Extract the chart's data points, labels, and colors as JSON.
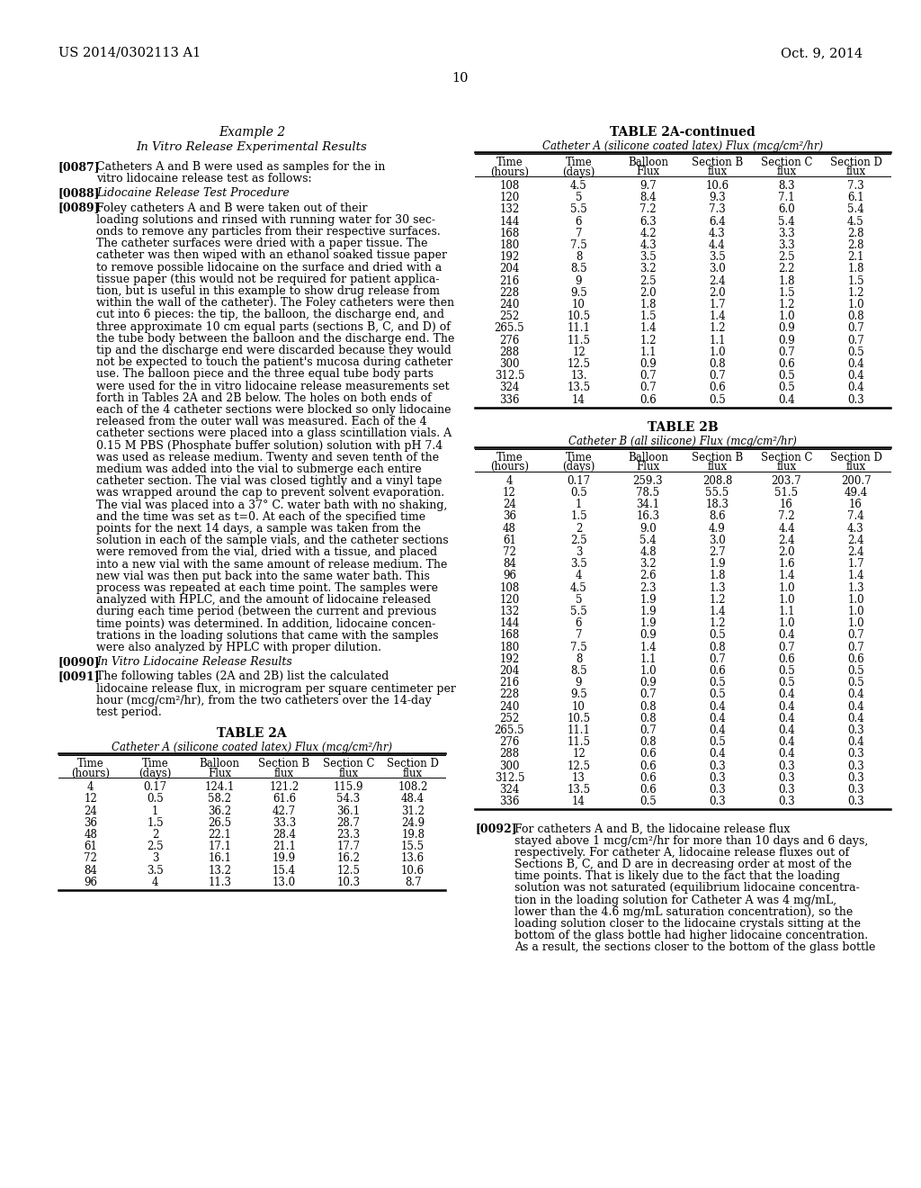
{
  "header_left": "US 2014/0302113 A1",
  "header_right": "Oct. 9, 2014",
  "page_number": "10",
  "section_title": "Example 2",
  "section_subtitle": "In Vitro Release Experimental Results",
  "table2a_title": "TABLE 2A",
  "table2a_subtitle": "Catheter A (silicone coated latex) Flux (mcg/cm²/hr)",
  "table2a_headers": [
    "Time\n(hours)",
    "Time\n(days)",
    "Balloon\nFlux",
    "Section B\nflux",
    "Section C\nflux",
    "Section D\nflux"
  ],
  "table2a_data": [
    [
      "4",
      "0.17",
      "124.1",
      "121.2",
      "115.9",
      "108.2"
    ],
    [
      "12",
      "0.5",
      "58.2",
      "61.6",
      "54.3",
      "48.4"
    ],
    [
      "24",
      "1",
      "36.2",
      "42.7",
      "36.1",
      "31.2"
    ],
    [
      "36",
      "1.5",
      "26.5",
      "33.3",
      "28.7",
      "24.9"
    ],
    [
      "48",
      "2",
      "22.1",
      "28.4",
      "23.3",
      "19.8"
    ],
    [
      "61",
      "2.5",
      "17.1",
      "21.1",
      "17.7",
      "15.5"
    ],
    [
      "72",
      "3",
      "16.1",
      "19.9",
      "16.2",
      "13.6"
    ],
    [
      "84",
      "3.5",
      "13.2",
      "15.4",
      "12.5",
      "10.6"
    ],
    [
      "96",
      "4",
      "11.3",
      "13.0",
      "10.3",
      "8.7"
    ]
  ],
  "table2a_cont_title": "TABLE 2A-continued",
  "table2a_cont_subtitle": "Catheter A (silicone coated latex) Flux (mcg/cm²/hr)",
  "table2a_cont_headers": [
    "Time\n(hours)",
    "Time\n(days)",
    "Balloon\nFlux",
    "Section B\nflux",
    "Section C\nflux",
    "Section D\nflux"
  ],
  "table2a_cont_data": [
    [
      "108",
      "4.5",
      "9.7",
      "10.6",
      "8.3",
      "7.3"
    ],
    [
      "120",
      "5",
      "8.4",
      "9.3",
      "7.1",
      "6.1"
    ],
    [
      "132",
      "5.5",
      "7.2",
      "7.3",
      "6.0",
      "5.4"
    ],
    [
      "144",
      "6",
      "6.3",
      "6.4",
      "5.4",
      "4.5"
    ],
    [
      "168",
      "7",
      "4.2",
      "4.3",
      "3.3",
      "2.8"
    ],
    [
      "180",
      "7.5",
      "4.3",
      "4.4",
      "3.3",
      "2.8"
    ],
    [
      "192",
      "8",
      "3.5",
      "3.5",
      "2.5",
      "2.1"
    ],
    [
      "204",
      "8.5",
      "3.2",
      "3.0",
      "2.2",
      "1.8"
    ],
    [
      "216",
      "9",
      "2.5",
      "2.4",
      "1.8",
      "1.5"
    ],
    [
      "228",
      "9.5",
      "2.0",
      "2.0",
      "1.5",
      "1.2"
    ],
    [
      "240",
      "10",
      "1.8",
      "1.7",
      "1.2",
      "1.0"
    ],
    [
      "252",
      "10.5",
      "1.5",
      "1.4",
      "1.0",
      "0.8"
    ],
    [
      "265.5",
      "11.1",
      "1.4",
      "1.2",
      "0.9",
      "0.7"
    ],
    [
      "276",
      "11.5",
      "1.2",
      "1.1",
      "0.9",
      "0.7"
    ],
    [
      "288",
      "12",
      "1.1",
      "1.0",
      "0.7",
      "0.5"
    ],
    [
      "300",
      "12.5",
      "0.9",
      "0.8",
      "0.6",
      "0.4"
    ],
    [
      "312.5",
      "13.",
      "0.7",
      "0.7",
      "0.5",
      "0.4"
    ],
    [
      "324",
      "13.5",
      "0.7",
      "0.6",
      "0.5",
      "0.4"
    ],
    [
      "336",
      "14",
      "0.6",
      "0.5",
      "0.4",
      "0.3"
    ]
  ],
  "table2b_title": "TABLE 2B",
  "table2b_subtitle": "Catheter B (all silicone) Flux (mcg/cm²/hr)",
  "table2b_headers": [
    "Time\n(hours)",
    "Time\n(days)",
    "Balloon\nFlux",
    "Section B\nflux",
    "Section C\nflux",
    "Section D\nflux"
  ],
  "table2b_data": [
    [
      "4",
      "0.17",
      "259.3",
      "208.8",
      "203.7",
      "200.7"
    ],
    [
      "12",
      "0.5",
      "78.5",
      "55.5",
      "51.5",
      "49.4"
    ],
    [
      "24",
      "1",
      "34.1",
      "18.3",
      "16",
      "16"
    ],
    [
      "36",
      "1.5",
      "16.3",
      "8.6",
      "7.2",
      "7.4"
    ],
    [
      "48",
      "2",
      "9.0",
      "4.9",
      "4.4",
      "4.3"
    ],
    [
      "61",
      "2.5",
      "5.4",
      "3.0",
      "2.4",
      "2.4"
    ],
    [
      "72",
      "3",
      "4.8",
      "2.7",
      "2.0",
      "2.4"
    ],
    [
      "84",
      "3.5",
      "3.2",
      "1.9",
      "1.6",
      "1.7"
    ],
    [
      "96",
      "4",
      "2.6",
      "1.8",
      "1.4",
      "1.4"
    ],
    [
      "108",
      "4.5",
      "2.3",
      "1.3",
      "1.0",
      "1.3"
    ],
    [
      "120",
      "5",
      "1.9",
      "1.2",
      "1.0",
      "1.0"
    ],
    [
      "132",
      "5.5",
      "1.9",
      "1.4",
      "1.1",
      "1.0"
    ],
    [
      "144",
      "6",
      "1.9",
      "1.2",
      "1.0",
      "1.0"
    ],
    [
      "168",
      "7",
      "0.9",
      "0.5",
      "0.4",
      "0.7"
    ],
    [
      "180",
      "7.5",
      "1.4",
      "0.8",
      "0.7",
      "0.7"
    ],
    [
      "192",
      "8",
      "1.1",
      "0.7",
      "0.6",
      "0.6"
    ],
    [
      "204",
      "8.5",
      "1.0",
      "0.6",
      "0.5",
      "0.5"
    ],
    [
      "216",
      "9",
      "0.9",
      "0.5",
      "0.5",
      "0.5"
    ],
    [
      "228",
      "9.5",
      "0.7",
      "0.5",
      "0.4",
      "0.4"
    ],
    [
      "240",
      "10",
      "0.8",
      "0.4",
      "0.4",
      "0.4"
    ],
    [
      "252",
      "10.5",
      "0.8",
      "0.4",
      "0.4",
      "0.4"
    ],
    [
      "265.5",
      "11.1",
      "0.7",
      "0.4",
      "0.4",
      "0.3"
    ],
    [
      "276",
      "11.5",
      "0.8",
      "0.5",
      "0.4",
      "0.4"
    ],
    [
      "288",
      "12",
      "0.6",
      "0.4",
      "0.4",
      "0.3"
    ],
    [
      "300",
      "12.5",
      "0.6",
      "0.3",
      "0.3",
      "0.3"
    ],
    [
      "312.5",
      "13",
      "0.6",
      "0.3",
      "0.3",
      "0.3"
    ],
    [
      "324",
      "13.5",
      "0.6",
      "0.3",
      "0.3",
      "0.3"
    ],
    [
      "336",
      "14",
      "0.5",
      "0.3",
      "0.3",
      "0.3"
    ]
  ],
  "background_color": "#ffffff",
  "text_color": "#000000",
  "font_family": "serif",
  "para_0087_lines": [
    "Catheters A and B were used as samples for the in",
    "vitro lidocaine release test as follows:"
  ],
  "para_0088": "Lidocaine Release Test Procedure",
  "para_0089_lines": [
    "Foley catheters A and B were taken out of their",
    "loading solutions and rinsed with running water for 30 sec-",
    "onds to remove any particles from their respective surfaces.",
    "The catheter surfaces were dried with a paper tissue. The",
    "catheter was then wiped with an ethanol soaked tissue paper",
    "to remove possible lidocaine on the surface and dried with a",
    "tissue paper (this would not be required for patient applica-",
    "tion, but is useful in this example to show drug release from",
    "within the wall of the catheter). The Foley catheters were then",
    "cut into 6 pieces: the tip, the balloon, the discharge end, and",
    "three approximate 10 cm equal parts (sections B, C, and D) of",
    "the tube body between the balloon and the discharge end. The",
    "tip and the discharge end were discarded because they would",
    "not be expected to touch the patient's mucosa during catheter",
    "use. The balloon piece and the three equal tube body parts",
    "were used for the in vitro lidocaine release measurements set",
    "forth in Tables 2A and 2B below. The holes on both ends of",
    "each of the 4 catheter sections were blocked so only lidocaine",
    "released from the outer wall was measured. Each of the 4",
    "catheter sections were placed into a glass scintillation vials. A",
    "0.15 M PBS (Phosphate buffer solution) solution with pH 7.4",
    "was used as release medium. Twenty and seven tenth of the",
    "medium was added into the vial to submerge each entire",
    "catheter section. The vial was closed tightly and a vinyl tape",
    "was wrapped around the cap to prevent solvent evaporation.",
    "The vial was placed into a 37° C. water bath with no shaking,",
    "and the time was set as t=0. At each of the specified time",
    "points for the next 14 days, a sample was taken from the",
    "solution in each of the sample vials, and the catheter sections",
    "were removed from the vial, dried with a tissue, and placed",
    "into a new vial with the same amount of release medium. The",
    "new vial was then put back into the same water bath. This",
    "process was repeated at each time point. The samples were",
    "analyzed with HPLC, and the amount of lidocaine released",
    "during each time period (between the current and previous",
    "time points) was determined. In addition, lidocaine concen-",
    "trations in the loading solutions that came with the samples",
    "were also analyzed by HPLC with proper dilution."
  ],
  "para_0090": "In Vitro Lidocaine Release Results",
  "para_0091_lines": [
    "The following tables (2A and 2B) list the calculated",
    "lidocaine release flux, in microgram per square centimeter per",
    "hour (mcg/cm²/hr), from the two catheters over the 14-day",
    "test period."
  ],
  "para_0092_lines": [
    "For catheters A and B, the lidocaine release flux",
    "stayed above 1 mcg/cm²/hr for more than 10 days and 6 days,",
    "respectively. For catheter A, lidocaine release fluxes out of",
    "Sections B, C, and D are in decreasing order at most of the",
    "time points. That is likely due to the fact that the loading",
    "solution was not saturated (equilibrium lidocaine concentra-",
    "tion in the loading solution for Catheter A was 4 mg/mL,",
    "lower than the 4.6 mg/mL saturation concentration), so the",
    "loading solution closer to the lidocaine crystals sitting at the",
    "bottom of the glass bottle had higher lidocaine concentration.",
    "As a result, the sections closer to the bottom of the glass bottle"
  ]
}
